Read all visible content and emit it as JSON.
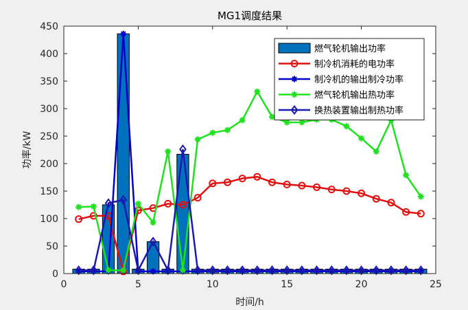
{
  "chart_data": {
    "type": "bar+line",
    "title": "MG1调度结果",
    "xlabel": "时间/h",
    "ylabel": "功率/kW",
    "xlim": [
      0,
      25
    ],
    "ylim": [
      0,
      450
    ],
    "xticks": [
      0,
      5,
      10,
      15,
      20,
      25
    ],
    "yticks": [
      0,
      50,
      100,
      150,
      200,
      250,
      300,
      350,
      400,
      450
    ],
    "grid": false,
    "legend_position": "top-right",
    "x": [
      1,
      2,
      3,
      4,
      5,
      6,
      7,
      8,
      9,
      10,
      11,
      12,
      13,
      14,
      15,
      16,
      17,
      18,
      19,
      20,
      21,
      22,
      23,
      24
    ],
    "bar_series": {
      "name": "燃气轮机输出功率",
      "color": "#0072BD",
      "values": [
        8,
        8,
        125,
        436,
        8,
        58,
        8,
        217,
        8,
        8,
        8,
        8,
        8,
        8,
        8,
        8,
        8,
        8,
        8,
        8,
        8,
        8,
        8,
        8
      ]
    },
    "series": [
      {
        "name": "制冷机消耗的电功率",
        "color": "#e01010",
        "marker": "circle",
        "values": [
          99,
          105,
          105,
          4,
          115,
          119,
          127,
          125,
          138,
          164,
          166,
          173,
          176,
          166,
          162,
          160,
          157,
          153,
          150,
          146,
          136,
          129,
          112,
          109
        ]
      },
      {
        "name": "制冷机的输出制冷功率",
        "color": "#0000cc",
        "marker": "asterisk",
        "values": [
          4,
          4,
          4,
          436,
          4,
          4,
          4,
          4,
          4,
          4,
          4,
          4,
          4,
          4,
          4,
          4,
          4,
          4,
          4,
          4,
          4,
          4,
          4,
          4
        ]
      },
      {
        "name": "燃气轮机输出热功率",
        "color": "#20e020",
        "marker": "asterisk",
        "values": [
          121,
          122,
          6,
          6,
          127,
          93,
          222,
          6,
          244,
          256,
          261,
          279,
          331,
          285,
          275,
          275,
          280,
          280,
          268,
          246,
          222,
          279,
          179,
          140
        ]
      },
      {
        "name": "换热装置输出制热功率",
        "color": "#1a1ab0",
        "marker": "diamond",
        "values": [
          6,
          6,
          128,
          134,
          6,
          58,
          6,
          226,
          6,
          6,
          6,
          6,
          6,
          6,
          6,
          6,
          6,
          6,
          6,
          6,
          6,
          6,
          6,
          6
        ]
      }
    ]
  }
}
